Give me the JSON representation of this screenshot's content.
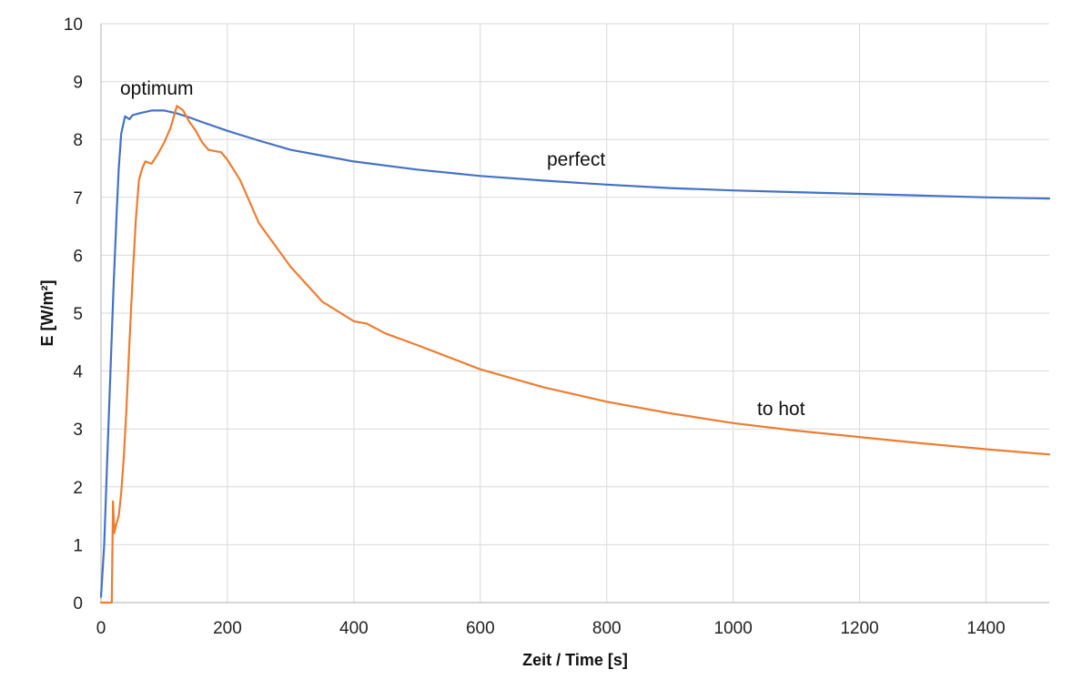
{
  "chart_data": {
    "type": "line",
    "title": "",
    "xlabel": "Zeit / Time [s]",
    "ylabel": "E [W/m²]",
    "xlim": [
      0,
      1500
    ],
    "ylim": [
      0,
      10
    ],
    "x_ticks": [
      "0",
      "200",
      "400",
      "600",
      "800",
      "1000",
      "1200",
      "1400"
    ],
    "y_ticks": [
      "0",
      "1",
      "2",
      "3",
      "4",
      "5",
      "6",
      "7",
      "8",
      "9",
      "10"
    ],
    "grid": true,
    "legend": "none",
    "annotations": [
      "optimum",
      "perfect",
      "to hot"
    ],
    "series": [
      {
        "color": "#4472C4",
        "x": [
          0,
          5,
          10,
          15,
          20,
          25,
          28,
          32,
          38,
          45,
          50,
          60,
          80,
          100,
          120,
          140,
          160,
          200,
          250,
          300,
          350,
          400,
          500,
          600,
          700,
          800,
          900,
          1000,
          1100,
          1200,
          1300,
          1400,
          1500
        ],
        "y": [
          0.1,
          1.0,
          2.5,
          4.0,
          5.5,
          6.8,
          7.5,
          8.1,
          8.4,
          8.35,
          8.42,
          8.45,
          8.5,
          8.5,
          8.45,
          8.38,
          8.3,
          8.15,
          7.98,
          7.82,
          7.72,
          7.62,
          7.48,
          7.37,
          7.29,
          7.22,
          7.16,
          7.12,
          7.09,
          7.06,
          7.03,
          7.0,
          6.98
        ]
      },
      {
        "color": "#ED7D31",
        "x": [
          0,
          17,
          19,
          21,
          24,
          28,
          32,
          36,
          40,
          45,
          50,
          55,
          60,
          65,
          70,
          75,
          80,
          90,
          100,
          110,
          120,
          130,
          140,
          150,
          160,
          170,
          180,
          190,
          200,
          220,
          250,
          300,
          350,
          400,
          420,
          450,
          500,
          600,
          700,
          800,
          900,
          1000,
          1100,
          1200,
          1300,
          1400,
          1500
        ],
        "y": [
          0,
          0,
          1.75,
          1.2,
          1.35,
          1.5,
          1.9,
          2.5,
          3.3,
          4.5,
          5.6,
          6.6,
          7.3,
          7.5,
          7.62,
          7.6,
          7.58,
          7.75,
          7.95,
          8.2,
          8.58,
          8.5,
          8.3,
          8.15,
          7.95,
          7.82,
          7.8,
          7.78,
          7.65,
          7.3,
          6.55,
          5.8,
          5.2,
          4.86,
          4.82,
          4.65,
          4.45,
          4.03,
          3.72,
          3.47,
          3.27,
          3.1,
          2.97,
          2.86,
          2.75,
          2.65,
          2.56
        ]
      }
    ]
  }
}
